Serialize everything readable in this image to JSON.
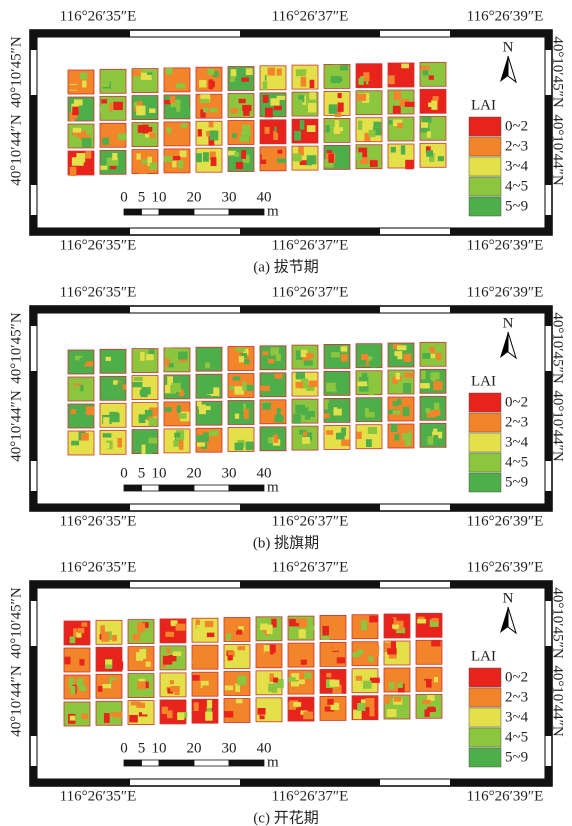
{
  "panels": [
    {
      "caption": "(a) 拔节期",
      "top_labels": [
        "116°26′35″E",
        "116°26′37″E",
        "116°26′39″E"
      ],
      "bottom_labels": [
        "116°26′35″E",
        "116°26′37″E",
        "116°26′39″E"
      ],
      "left_labels": [
        "40°10′44″N",
        "40°10′45″N"
      ],
      "right_labels": [
        "40°10′44″N",
        "40°10′45″N"
      ],
      "north": "N",
      "legend": {
        "title": "LAI",
        "items": [
          "0~2",
          "2~3",
          "3~4",
          "4~5",
          "5~9"
        ],
        "colors": [
          "#e8231c",
          "#f2842a",
          "#e3e04a",
          "#8cc63f",
          "#4dae4a"
        ]
      },
      "scale": {
        "ticks": [
          0,
          5,
          10,
          20,
          30,
          40
        ],
        "unit": "m"
      }
    },
    {
      "caption": "(b) 挑旗期",
      "top_labels": [
        "116°26′35″E",
        "116°26′37″E",
        "116°26′39″E"
      ],
      "bottom_labels": [
        "116°26′35″E",
        "116°26′37″E",
        "116°26′39″E"
      ],
      "left_labels": [
        "40°10′44″N",
        "40°10′45″N"
      ],
      "right_labels": [
        "40°10′44″N",
        "40°10′45″N"
      ],
      "north": "N",
      "legend": {
        "title": "LAI",
        "items": [
          "0~2",
          "2~3",
          "3~4",
          "4~5",
          "5~9"
        ],
        "colors": [
          "#e8231c",
          "#f2842a",
          "#e3e04a",
          "#8cc63f",
          "#4dae4a"
        ]
      },
      "scale": {
        "ticks": [
          0,
          5,
          10,
          20,
          30,
          40
        ],
        "unit": "m"
      }
    },
    {
      "caption": "(c) 开花期",
      "top_labels": [
        "116°26′35″E",
        "116°26′37″E",
        "116°26′39″E"
      ],
      "bottom_labels": [
        "116°26′35″E",
        "116°26′37″E",
        "116°26′39″E"
      ],
      "left_labels": [
        "40°10′44″N",
        "40°10′45″N"
      ],
      "right_labels": [
        "40°10′44″N",
        "40°10′45″N"
      ],
      "north": "N",
      "legend": {
        "title": "LAI",
        "items": [
          "0~2",
          "2~3",
          "3~4",
          "4~5",
          "5~9"
        ],
        "colors": [
          "#e8231c",
          "#f2842a",
          "#e3e04a",
          "#8cc63f",
          "#4dae4a"
        ]
      },
      "scale": {
        "ticks": [
          0,
          5,
          10,
          20,
          30,
          40
        ],
        "unit": "m"
      }
    }
  ]
}
